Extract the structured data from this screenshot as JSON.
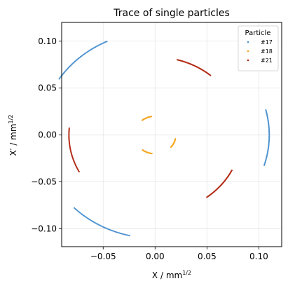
{
  "chart_data": {
    "type": "scatter",
    "title": "Trace of single particles",
    "xlabel_main": "X / mm",
    "xlabel_exp": "1/2",
    "ylabel_main": "X′ / mm",
    "ylabel_exp": "1/2",
    "xlim": [
      -0.09,
      0.122
    ],
    "ylim": [
      -0.119,
      0.12
    ],
    "xticks": [
      -0.05,
      0.0,
      0.05,
      0.1
    ],
    "xtick_labels": [
      "−0.05",
      "0.00",
      "0.05",
      "0.10"
    ],
    "yticks": [
      -0.1,
      -0.05,
      0.0,
      0.05,
      0.1
    ],
    "ytick_labels": [
      "−0.10",
      "−0.05",
      "0.00",
      "0.05",
      "0.10"
    ],
    "grid": true,
    "legend": {
      "title": "Particle",
      "position": "top-right"
    },
    "series": [
      {
        "name": "#17",
        "color": "#4c92d0",
        "arcs": [
          {
            "cx": 0.0,
            "cy": 0.0,
            "rx": 0.11,
            "ry": 0.11,
            "a0": 115,
            "a1": 147,
            "n": 50
          },
          {
            "cx": 0.0,
            "cy": 0.0,
            "rx": 0.11,
            "ry": 0.11,
            "a0": -17,
            "a1": 14,
            "n": 50
          },
          {
            "cx": 0.0,
            "cy": 0.0,
            "rx": 0.11,
            "ry": 0.11,
            "a0": 225,
            "a1": 257,
            "n": 50
          }
        ]
      },
      {
        "name": "#18",
        "color": "#f4a623",
        "arcs": [
          {
            "cx": 0.0,
            "cy": 0.0,
            "rx": 0.02,
            "ry": 0.02,
            "a0": 100,
            "a1": 128,
            "n": 18
          },
          {
            "cx": 0.0,
            "cy": 0.0,
            "rx": 0.02,
            "ry": 0.02,
            "a0": -40,
            "a1": -12,
            "n": 18
          },
          {
            "cx": 0.0,
            "cy": 0.0,
            "rx": 0.02,
            "ry": 0.02,
            "a0": 233,
            "a1": 261,
            "n": 18
          }
        ]
      },
      {
        "name": "#21",
        "color": "#b22a14",
        "arcs": [
          {
            "cx": 0.0,
            "cy": 0.0,
            "rx": 0.083,
            "ry": 0.083,
            "a0": 50,
            "a1": 75,
            "n": 40
          },
          {
            "cx": 0.0,
            "cy": 0.0,
            "rx": 0.083,
            "ry": 0.083,
            "a0": 175,
            "a1": 208,
            "n": 40
          },
          {
            "cx": 0.0,
            "cy": 0.0,
            "rx": 0.083,
            "ry": 0.083,
            "a0": -53,
            "a1": -27,
            "n": 40
          }
        ]
      }
    ]
  }
}
